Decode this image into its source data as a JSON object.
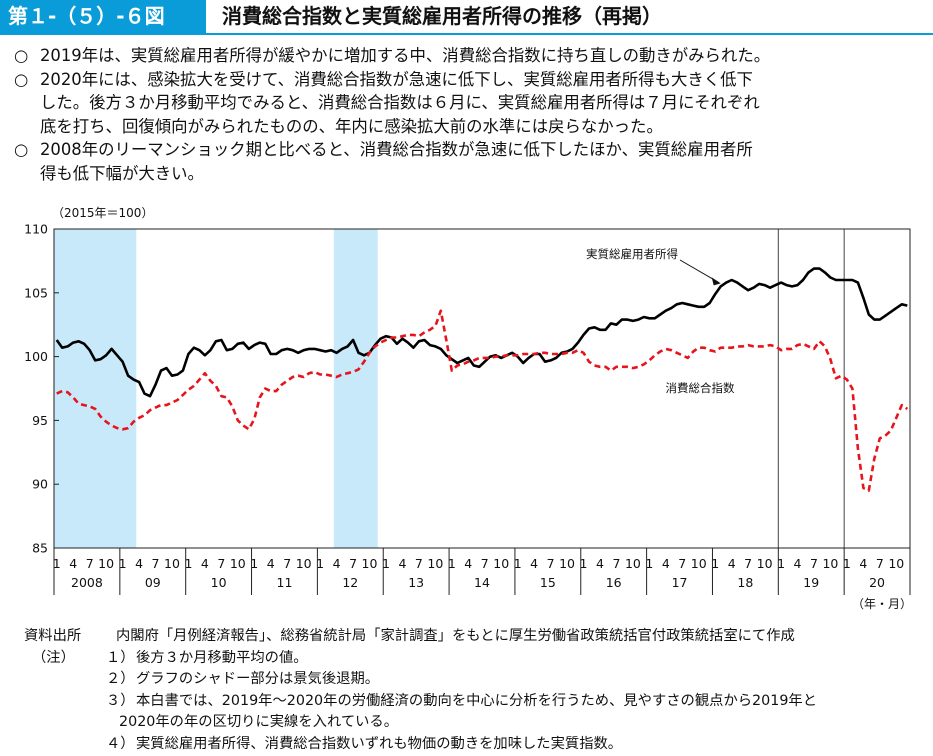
{
  "header": {
    "figure_number": "第１-（５）-６図",
    "title": "消費総合指数と実質総雇用者所得の推移（再掲）"
  },
  "bullets": [
    {
      "mark": "○",
      "lines": [
        "2019年は、実質総雇用者所得が緩やかに増加する中、消費総合指数に持ち直しの動きがみられた。"
      ]
    },
    {
      "mark": "○",
      "lines": [
        "2020年には、感染拡大を受けて、消費総合指数が急速に低下し、実質総雇用者所得も大きく低下",
        "した。後方３か月移動平均でみると、消費総合指数は６月に、実質総雇用者所得は７月にそれぞれ",
        "底を打ち、回復傾向がみられたものの、年内に感染拡大前の水準には戻らなかった。"
      ]
    },
    {
      "mark": "○",
      "lines": [
        "2008年のリーマンショック期と比べると、消費総合指数が急速に低下したほか、実質総雇用者所",
        "得も低下幅が大きい。"
      ]
    }
  ],
  "chart_data": {
    "type": "line",
    "unit_label": "（2015年＝100）",
    "xlabel": "（年・月）",
    "ylim": [
      85,
      110
    ],
    "y_ticks": [
      85,
      90,
      95,
      100,
      105,
      110
    ],
    "month_tick_labels": [
      "1",
      "4",
      "7",
      "10"
    ],
    "years": [
      "2008",
      "09",
      "10",
      "11",
      "12",
      "13",
      "14",
      "15",
      "16",
      "17",
      "18",
      "19",
      "20"
    ],
    "shaded_periods": [
      {
        "start": "2008-01",
        "end": "2009-03"
      },
      {
        "start": "2012-04",
        "end": "2012-11"
      }
    ],
    "year_separators": [
      "2019-01",
      "2020-01"
    ],
    "x_start": "2008-01",
    "x_end": "2020-12",
    "series": [
      {
        "name": "実質総雇用者所得",
        "color": "#000000",
        "style": "solid",
        "values": [
          101.3,
          100.7,
          100.8,
          101.1,
          101.2,
          101.0,
          100.5,
          99.7,
          99.8,
          100.1,
          100.6,
          100.1,
          99.6,
          98.5,
          98.2,
          98.0,
          97.1,
          96.9,
          97.8,
          98.9,
          99.1,
          98.5,
          98.6,
          98.9,
          100.2,
          100.7,
          100.5,
          100.1,
          100.5,
          101.2,
          101.3,
          100.5,
          100.6,
          101.0,
          101.1,
          100.6,
          100.9,
          101.1,
          101.0,
          100.2,
          100.2,
          100.5,
          100.6,
          100.5,
          100.3,
          100.5,
          100.6,
          100.6,
          100.5,
          100.4,
          100.5,
          100.3,
          100.6,
          100.8,
          101.3,
          100.3,
          100.1,
          100.3,
          100.9,
          101.4,
          101.6,
          101.5,
          101.0,
          101.4,
          101.1,
          100.7,
          101.2,
          101.3,
          100.9,
          100.8,
          100.6,
          100.1,
          99.8,
          99.5,
          99.7,
          99.9,
          99.3,
          99.2,
          99.6,
          100.0,
          100.1,
          99.9,
          100.1,
          100.3,
          100.0,
          99.5,
          99.9,
          100.2,
          100.2,
          99.6,
          99.7,
          99.9,
          100.3,
          100.4,
          100.6,
          101.1,
          101.7,
          102.2,
          102.3,
          102.1,
          102.1,
          102.6,
          102.5,
          102.9,
          102.9,
          102.8,
          102.9,
          103.1,
          103.0,
          103.0,
          103.3,
          103.6,
          103.8,
          104.1,
          104.2,
          104.1,
          104.0,
          103.9,
          103.9,
          104.2,
          104.9,
          105.5,
          105.8,
          106.0,
          105.8,
          105.5,
          105.2,
          105.4,
          105.7,
          105.6,
          105.4,
          105.6,
          105.8,
          105.6,
          105.5,
          105.6,
          106.0,
          106.6,
          106.9,
          106.9,
          106.6,
          106.2,
          106.0,
          106.0,
          106.0,
          106.0,
          105.8,
          104.6,
          103.3,
          102.9,
          102.9,
          103.2,
          103.5,
          103.8,
          104.1,
          104.0
        ]
      },
      {
        "name": "消費総合指数",
        "color": "#e8141c",
        "style": "dashed",
        "values": [
          97.1,
          97.3,
          97.2,
          96.8,
          96.3,
          96.2,
          96.1,
          95.9,
          95.3,
          94.9,
          94.6,
          94.4,
          94.3,
          94.4,
          94.9,
          95.2,
          95.4,
          95.8,
          96.0,
          96.2,
          96.2,
          96.4,
          96.6,
          97.0,
          97.4,
          97.7,
          98.2,
          98.7,
          98.1,
          97.7,
          96.9,
          96.8,
          96.1,
          95.0,
          94.6,
          94.3,
          95.1,
          96.8,
          97.5,
          97.3,
          97.3,
          97.8,
          98.1,
          98.4,
          98.5,
          98.4,
          98.7,
          98.8,
          98.6,
          98.6,
          98.5,
          98.4,
          98.6,
          98.7,
          98.8,
          99.0,
          99.6,
          100.3,
          100.8,
          101.1,
          101.3,
          101.5,
          101.5,
          101.6,
          101.7,
          101.7,
          101.6,
          101.9,
          102.1,
          102.4,
          103.6,
          101.3,
          98.9,
          99.3,
          99.4,
          99.6,
          99.7,
          99.9,
          99.9,
          99.9,
          100.0,
          100.0,
          100.1,
          100.1,
          100.1,
          100.2,
          100.2,
          100.2,
          100.3,
          100.3,
          100.2,
          100.2,
          100.2,
          100.3,
          100.3,
          100.5,
          100.3,
          99.6,
          99.3,
          99.2,
          99.2,
          98.9,
          99.2,
          99.2,
          99.2,
          99.1,
          99.2,
          99.4,
          99.7,
          100.1,
          100.4,
          100.6,
          100.5,
          100.3,
          100.1,
          99.9,
          100.4,
          100.7,
          100.7,
          100.5,
          100.4,
          100.7,
          100.7,
          100.7,
          100.8,
          100.8,
          100.9,
          100.8,
          100.8,
          100.8,
          100.9,
          100.8,
          100.5,
          100.6,
          100.6,
          100.9,
          101.0,
          100.8,
          100.6,
          101.2,
          100.8,
          99.8,
          98.3,
          98.5,
          98.2,
          97.5,
          92.8,
          89.7,
          89.5,
          92.0,
          93.6,
          93.8,
          94.2,
          95.2,
          96.2,
          95.9
        ]
      }
    ],
    "annotations": [
      {
        "text": "実質総雇用者所得",
        "series": "実質総雇用者所得",
        "arrow_to": "2018-02"
      },
      {
        "text": "消費総合指数",
        "series": "消費総合指数"
      }
    ]
  },
  "notes": [
    {
      "label": "資料出所",
      "number": "",
      "text": "内閣府「月例経済報告」、総務省統計局「家計調査」をもとに厚生労働省政策統括官付政策統括室にて作成"
    },
    {
      "label": "（注）",
      "number": "１）",
      "text": "後方３か月移動平均の値。"
    },
    {
      "label": "",
      "number": "２）",
      "text": "グラフのシャドー部分は景気後退期。"
    },
    {
      "label": "",
      "number": "３）",
      "text": "本白書では、2019年～2020年の労働経済の動向を中心に分析を行うため、見やすさの観点から2019年と"
    },
    {
      "label": "",
      "number": "",
      "text": "2020年の年の区切りに実線を入れている。"
    },
    {
      "label": "",
      "number": "４）",
      "text": "実質総雇用者所得、消費総合指数いずれも物価の動きを加味した実質指数。"
    }
  ]
}
